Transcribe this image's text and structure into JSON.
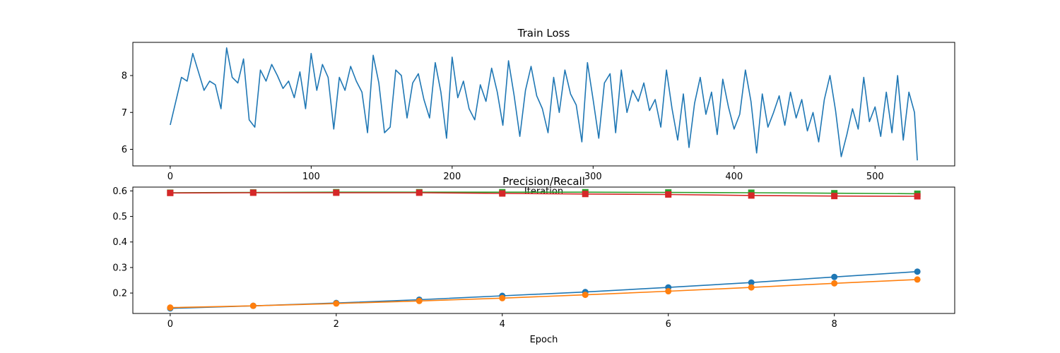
{
  "chart_data": [
    {
      "type": "line",
      "title": "Train Loss",
      "xlabel": "Iteration",
      "ylabel": "",
      "xlim": [
        -26.5,
        556.5
      ],
      "ylim": [
        5.55,
        8.9
      ],
      "xticks": [
        0,
        100,
        200,
        300,
        400,
        500
      ],
      "yticks": [
        6,
        7,
        8
      ],
      "grid": false,
      "series": [
        {
          "color": "#1f77b4",
          "sample_every": 4,
          "x": [
            0,
            4,
            8,
            12,
            16,
            20,
            24,
            28,
            32,
            36,
            40,
            44,
            48,
            52,
            56,
            60,
            64,
            68,
            72,
            76,
            80,
            84,
            88,
            92,
            96,
            100,
            104,
            108,
            112,
            116,
            120,
            124,
            128,
            132,
            136,
            140,
            144,
            148,
            152,
            156,
            160,
            164,
            168,
            172,
            176,
            180,
            184,
            188,
            192,
            196,
            200,
            204,
            208,
            212,
            216,
            220,
            224,
            228,
            232,
            236,
            240,
            244,
            248,
            252,
            256,
            260,
            264,
            268,
            272,
            276,
            280,
            284,
            288,
            292,
            296,
            300,
            304,
            308,
            312,
            316,
            320,
            324,
            328,
            332,
            336,
            340,
            344,
            348,
            352,
            356,
            360,
            364,
            368,
            372,
            376,
            380,
            384,
            388,
            392,
            396,
            400,
            404,
            408,
            412,
            416,
            420,
            424,
            428,
            432,
            436,
            440,
            444,
            448,
            452,
            456,
            460,
            464,
            468,
            472,
            476,
            480,
            484,
            488,
            492,
            496,
            500,
            504,
            508,
            512,
            516,
            520,
            524,
            528,
            530
          ],
          "values": [
            6.66,
            7.3,
            7.95,
            7.85,
            8.6,
            8.1,
            7.6,
            7.85,
            7.75,
            7.1,
            8.75,
            7.95,
            7.8,
            8.45,
            6.8,
            6.6,
            8.15,
            7.85,
            8.3,
            8.0,
            7.65,
            7.85,
            7.4,
            8.1,
            7.1,
            8.6,
            7.6,
            8.3,
            7.95,
            6.55,
            7.95,
            7.6,
            8.25,
            7.85,
            7.55,
            6.45,
            8.55,
            7.8,
            6.45,
            6.6,
            8.15,
            8.0,
            6.85,
            7.8,
            8.05,
            7.35,
            6.85,
            8.35,
            7.55,
            6.3,
            8.5,
            7.4,
            7.85,
            7.1,
            6.8,
            7.75,
            7.3,
            8.2,
            7.55,
            6.65,
            8.4,
            7.45,
            6.35,
            7.6,
            8.25,
            7.45,
            7.1,
            6.45,
            7.95,
            7.0,
            8.15,
            7.5,
            7.2,
            6.2,
            8.35,
            7.35,
            6.3,
            7.8,
            8.05,
            6.45,
            8.15,
            7.0,
            7.6,
            7.3,
            7.8,
            7.05,
            7.35,
            6.6,
            8.15,
            7.1,
            6.25,
            7.5,
            6.05,
            7.25,
            7.95,
            6.95,
            7.55,
            6.4,
            7.9,
            7.15,
            6.55,
            6.95,
            8.15,
            7.3,
            5.9,
            7.5,
            6.6,
            7.0,
            7.45,
            6.65,
            7.55,
            6.85,
            7.35,
            6.5,
            7.0,
            6.2,
            7.35,
            8.0,
            7.05,
            5.8,
            6.4,
            7.1,
            6.55,
            7.95,
            6.75,
            7.15,
            6.35,
            7.55,
            6.45,
            8.0,
            6.25,
            7.55,
            7.0,
            5.7
          ]
        }
      ]
    },
    {
      "type": "line",
      "title": "Precision/Recall",
      "xlabel": "Epoch",
      "ylabel": "",
      "xlim": [
        -0.45,
        9.45
      ],
      "ylim": [
        0.12,
        0.615
      ],
      "xticks": [
        0,
        2,
        4,
        6,
        8
      ],
      "yticks": [
        0.2,
        0.3,
        0.4,
        0.5,
        0.6
      ],
      "grid": false,
      "x": [
        0,
        1,
        2,
        3,
        4,
        5,
        6,
        7,
        8,
        9
      ],
      "series": [
        {
          "color": "#2ca02c",
          "marker": "square",
          "values": [
            0.593,
            0.594,
            0.595,
            0.595,
            0.595,
            0.595,
            0.594,
            0.593,
            0.591,
            0.589
          ]
        },
        {
          "color": "#d62728",
          "marker": "square",
          "values": [
            0.592,
            0.593,
            0.593,
            0.593,
            0.59,
            0.588,
            0.586,
            0.582,
            0.58,
            0.579
          ]
        },
        {
          "color": "#1f77b4",
          "marker": "circle",
          "values": [
            0.14,
            0.15,
            0.161,
            0.174,
            0.189,
            0.204,
            0.222,
            0.241,
            0.263,
            0.284
          ]
        },
        {
          "color": "#ff7f0e",
          "marker": "circle",
          "values": [
            0.143,
            0.15,
            0.159,
            0.169,
            0.18,
            0.193,
            0.207,
            0.222,
            0.238,
            0.253
          ]
        }
      ]
    }
  ]
}
